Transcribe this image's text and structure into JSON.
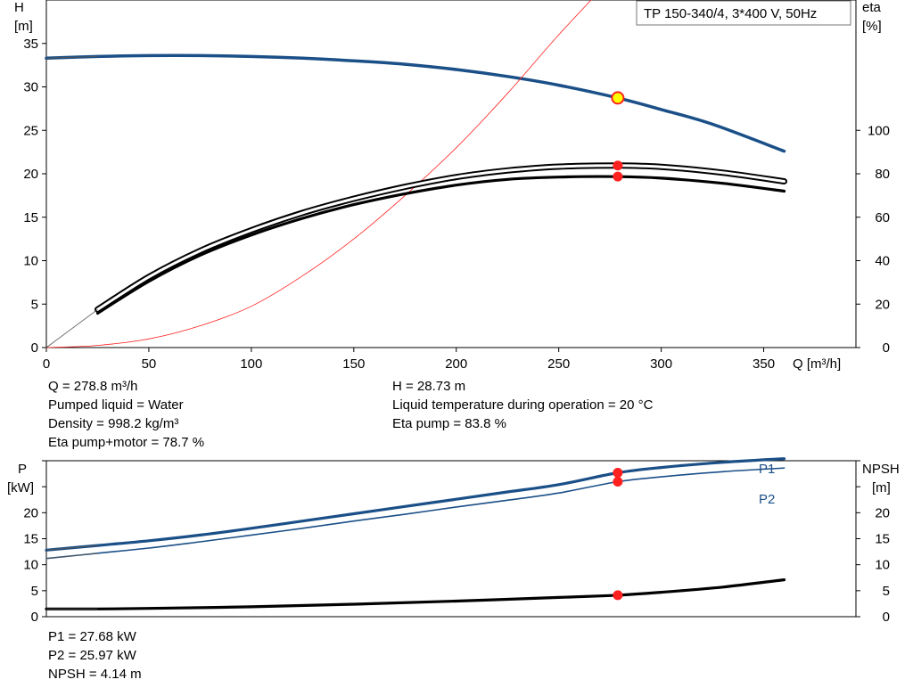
{
  "chart_data": [
    {
      "type": "line",
      "title": "TP 150-340/4, 3*400 V, 50Hz",
      "xlabel": "Q [m³/h]",
      "xlim": [
        0,
        395
      ],
      "x_ticks": [
        "0",
        "50",
        "100",
        "150",
        "200",
        "250",
        "300",
        "350"
      ],
      "y_left": {
        "label_top": "H",
        "label_unit": "[m]",
        "ylim": [
          0,
          40
        ],
        "ticks": [
          "0",
          "5",
          "10",
          "15",
          "20",
          "25",
          "30",
          "35"
        ]
      },
      "y_right": {
        "label_top": "eta",
        "label_unit": "[%]",
        "ylim": [
          0,
          160
        ],
        "ticks": [
          "0",
          "20",
          "40",
          "60",
          "80",
          "100"
        ]
      },
      "series": [
        {
          "name": "",
          "axis": "left",
          "color": "#1a4f87",
          "width": 3.5,
          "lead_in": true,
          "x": [
            0,
            25,
            50,
            75,
            100,
            125,
            150,
            175,
            200,
            225,
            250,
            278.8,
            300,
            325,
            360
          ],
          "y": [
            33.3,
            33.5,
            33.6,
            33.6,
            33.5,
            33.3,
            33.0,
            32.6,
            32.0,
            31.2,
            30.2,
            28.73,
            27.4,
            25.7,
            22.6
          ]
        },
        {
          "name": "",
          "axis": "right",
          "color": "#ff2020",
          "width": 0.8,
          "lead_in": false,
          "x": [
            0,
            25,
            50,
            75,
            100,
            125,
            150,
            175,
            200,
            225,
            250,
            278.8
          ],
          "y": [
            0,
            1,
            4,
            10,
            19,
            33,
            50,
            70,
            92,
            117,
            144,
            173
          ]
        },
        {
          "name": "",
          "axis": "right",
          "color": "#000000",
          "width": 2.2,
          "double": true,
          "lead_in": true,
          "x": [
            25,
            50,
            75,
            100,
            125,
            150,
            175,
            200,
            225,
            250,
            278.8,
            300,
            330,
            360
          ],
          "y": [
            17.5,
            32.5,
            44.5,
            54,
            62,
            68.5,
            74,
            78.5,
            81.5,
            83.3,
            83.8,
            83.2,
            80.5,
            76.5
          ]
        },
        {
          "name": "",
          "axis": "right",
          "color": "#000000",
          "width": 3.2,
          "lead_in": false,
          "x": [
            25,
            50,
            75,
            100,
            125,
            150,
            175,
            200,
            225,
            250,
            278.8,
            300,
            330,
            360
          ],
          "y": [
            15.8,
            30.5,
            42.5,
            51.8,
            59.5,
            65.8,
            70.8,
            74.8,
            77.4,
            78.5,
            78.7,
            78.0,
            75.6,
            72
          ]
        }
      ],
      "operating_point": {
        "x": 278.8,
        "h": 28.73,
        "eta_pump": 83.8,
        "eta_total": 78.7
      }
    },
    {
      "type": "line",
      "xlim": [
        0,
        395
      ],
      "y_left": {
        "label_top": "P",
        "label_unit": "[kW]",
        "ylim": [
          0,
          30
        ],
        "ticks": [
          "0",
          "5",
          "10",
          "15",
          "20"
        ]
      },
      "y_right": {
        "label_top": "NPSH",
        "label_unit": "[m]",
        "ylim": [
          0,
          30
        ],
        "ticks": [
          "0",
          "5",
          "10",
          "15",
          "20"
        ]
      },
      "series": [
        {
          "name": "P1",
          "axis": "left",
          "color": "#1a4f87",
          "width": 3.2,
          "lead_in": true,
          "x": [
            0,
            25,
            50,
            75,
            100,
            125,
            150,
            175,
            200,
            225,
            250,
            278.8,
            300,
            330,
            360
          ],
          "y": [
            12.8,
            13.7,
            14.6,
            15.7,
            17.0,
            18.4,
            19.8,
            21.2,
            22.6,
            24.0,
            25.4,
            27.68,
            28.7,
            29.7,
            30.4
          ]
        },
        {
          "name": "P2",
          "axis": "left",
          "color": "#1a4f87",
          "width": 1.6,
          "lead_in": true,
          "x": [
            0,
            25,
            50,
            75,
            100,
            125,
            150,
            175,
            200,
            225,
            250,
            278.8,
            300,
            330,
            360
          ],
          "y": [
            11.2,
            12.2,
            13.2,
            14.4,
            15.7,
            17.0,
            18.4,
            19.7,
            21.1,
            22.4,
            23.8,
            25.97,
            26.9,
            27.9,
            28.6
          ]
        },
        {
          "name": "",
          "axis": "right",
          "color": "#000000",
          "width": 3.2,
          "lead_in": true,
          "x": [
            0,
            25,
            50,
            100,
            150,
            200,
            250,
            278.8,
            300,
            330,
            360
          ],
          "y": [
            1.5,
            1.5,
            1.6,
            1.9,
            2.4,
            3.0,
            3.7,
            4.14,
            4.7,
            5.7,
            7.1
          ]
        }
      ],
      "operating_point": {
        "x": 278.8,
        "p1": 27.68,
        "p2": 25.97,
        "npsh": 4.14
      }
    }
  ],
  "info_top": {
    "left": [
      "Q = 278.8 m³/h",
      "Pumped liquid = Water",
      "Density = 998.2 kg/m³",
      "Eta pump+motor = 78.7 %"
    ],
    "right": [
      "H = 28.73 m",
      "Liquid temperature during operation = 20 °C",
      "Eta pump = 83.8 %"
    ]
  },
  "info_bottom": [
    "P1 = 27.68 kW",
    "P2 = 25.97 kW",
    "NPSH = 4.14 m"
  ]
}
